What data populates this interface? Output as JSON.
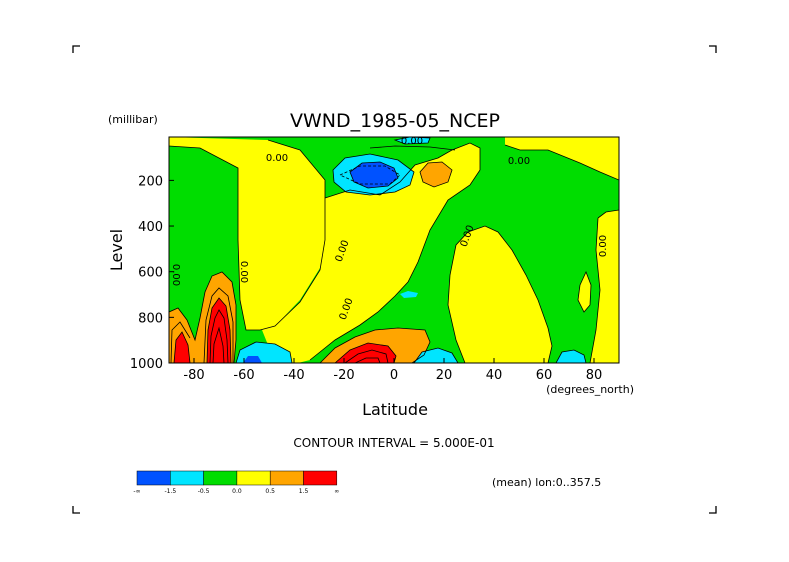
{
  "chart_data": {
    "type": "heatmap",
    "title": "VWND_1985-05_NCEP",
    "xlabel": "Latitude",
    "ylabel": "Level",
    "x_units": "(degrees_north)",
    "y_units": "(millibar)",
    "xlim": [
      -90,
      90
    ],
    "ylim": [
      1000,
      10
    ],
    "y_inverted": true,
    "x_ticks": [
      -80,
      -60,
      -40,
      -20,
      0,
      20,
      40,
      60,
      80
    ],
    "x_tick_labels": [
      "-80",
      "-60",
      "-40",
      "-20",
      "0",
      "20",
      "40",
      "60",
      "80"
    ],
    "y_ticks": [
      200,
      400,
      600,
      800,
      1000
    ],
    "y_tick_labels": [
      "200",
      "400",
      "600",
      "800",
      "1000"
    ],
    "contour_interval_text": "CONTOUR INTERVAL = 5.000E-01",
    "contour_labels": [
      "0.00",
      "0.00",
      "0.00",
      "0.00",
      "0.00",
      "0.00",
      "0.00",
      "0.00",
      "0.00"
    ],
    "legend_note": "(mean) lon:0..357.5",
    "colorbar": {
      "colors": [
        "#0052ff",
        "#00e5ff",
        "#00dd00",
        "#ffff00",
        "#ffa500",
        "#ff0000"
      ],
      "tick_labels": [
        "-∞",
        "-1.5",
        "-0.5",
        "0.0",
        "0.5",
        "1.5",
        "∞"
      ]
    },
    "grid": false,
    "legend_placement": "bottom-left colorbar"
  }
}
